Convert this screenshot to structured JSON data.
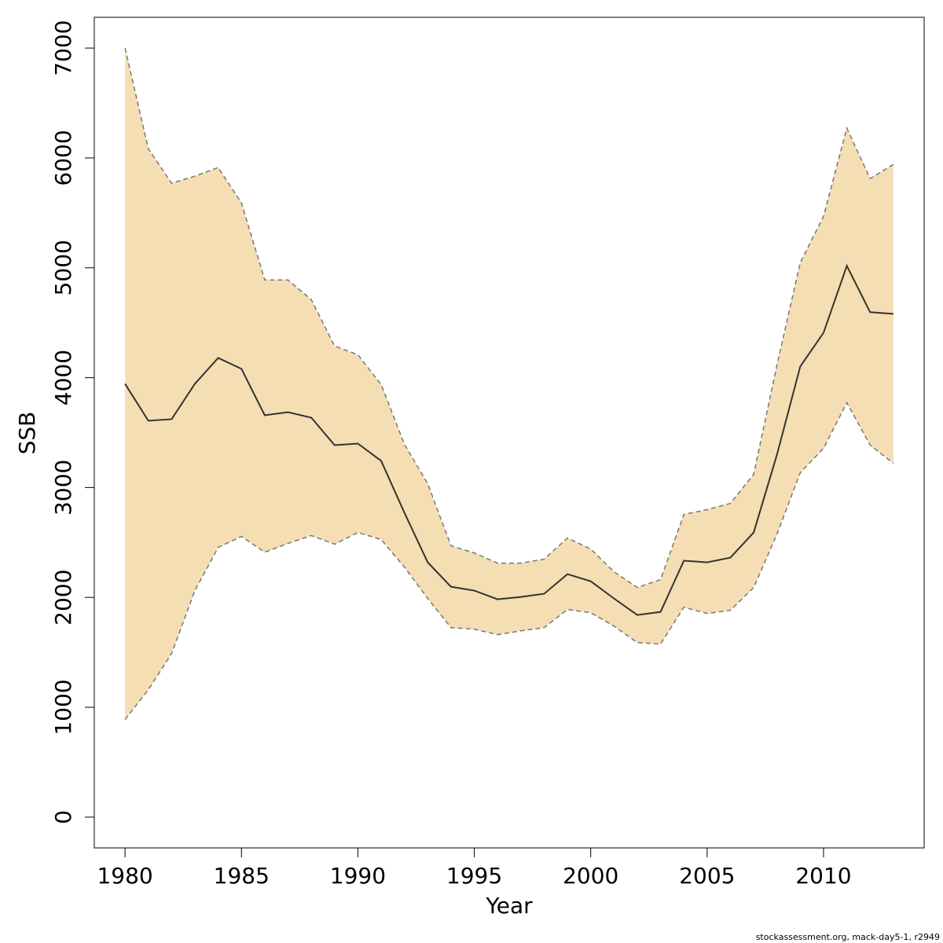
{
  "chart_data": {
    "type": "band-line",
    "xlabel": "Year",
    "ylabel": "SSB",
    "footer": "stockassessment.org, mack-day5-1, r2949",
    "x": [
      1980,
      1981,
      1982,
      1983,
      1984,
      1985,
      1986,
      1987,
      1988,
      1989,
      1990,
      1991,
      1992,
      1993,
      1994,
      1995,
      1996,
      1997,
      1998,
      1999,
      2000,
      2001,
      2002,
      2003,
      2004,
      2005,
      2006,
      2007,
      2008,
      2009,
      2010,
      2011,
      2012,
      2013
    ],
    "values": [
      3944,
      3608,
      3622,
      3944,
      4180,
      4080,
      3658,
      3686,
      3636,
      3386,
      3400,
      3243,
      2770,
      2319,
      2097,
      2062,
      1983,
      2004,
      2033,
      2212,
      2147,
      1990,
      1840,
      1868,
      2334,
      2319,
      2362,
      2591,
      3300,
      4102,
      4409,
      5018,
      4596,
      4581
    ],
    "upper": [
      7000,
      6084,
      5770,
      5834,
      5913,
      5590,
      4889,
      4889,
      4710,
      4288,
      4209,
      3937,
      3393,
      3035,
      2470,
      2405,
      2312,
      2312,
      2348,
      2541,
      2441,
      2233,
      2090,
      2162,
      2756,
      2799,
      2856,
      3121,
      4116,
      5047,
      5469,
      6271,
      5812,
      5941
    ],
    "lower": [
      888,
      1160,
      1489,
      2062,
      2455,
      2555,
      2412,
      2491,
      2563,
      2484,
      2591,
      2527,
      2276,
      1990,
      1725,
      1711,
      1661,
      1696,
      1725,
      1890,
      1861,
      1739,
      1589,
      1575,
      1911,
      1854,
      1883,
      2090,
      2577,
      3135,
      3357,
      3772,
      3386,
      3221
    ],
    "line_color": "#333333",
    "band_color": "#f5deb3",
    "bound_color": "#777777",
    "xlim": [
      1978.68,
      2014.32
    ],
    "xticks": [
      1980,
      1985,
      1990,
      1995,
      2000,
      2005,
      2010
    ],
    "ylim": [
      -280,
      7280
    ],
    "yticks": [
      0,
      1000,
      2000,
      3000,
      4000,
      5000,
      6000,
      7000
    ]
  }
}
